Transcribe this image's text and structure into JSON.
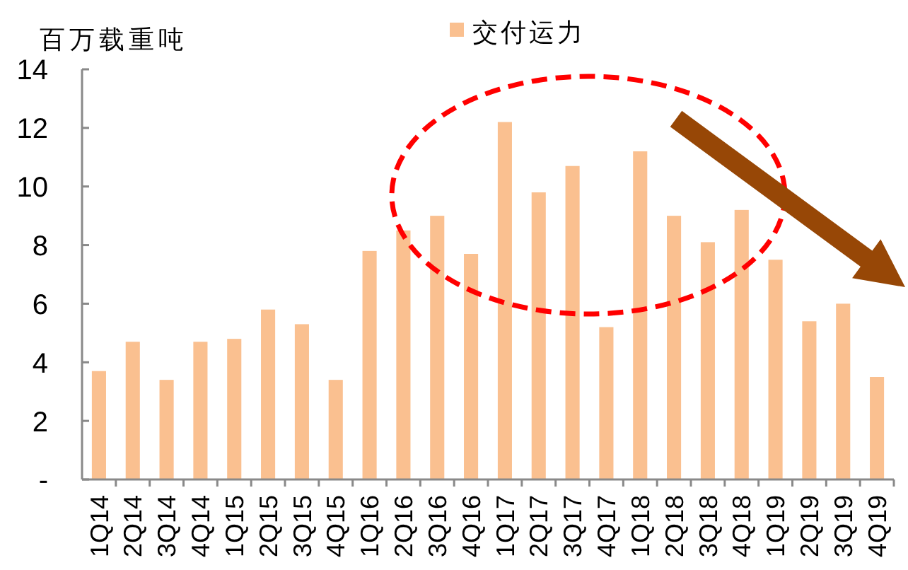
{
  "chart_data": {
    "type": "bar",
    "ylabel": "百万载重吨",
    "legend": "top",
    "categories": [
      "1Q14",
      "2Q14",
      "3Q14",
      "4Q14",
      "1Q15",
      "2Q15",
      "3Q15",
      "4Q15",
      "1Q16",
      "2Q16",
      "3Q16",
      "4Q16",
      "1Q17",
      "2Q17",
      "3Q17",
      "4Q17",
      "1Q18",
      "2Q18",
      "3Q18",
      "4Q18",
      "1Q19",
      "2Q19",
      "3Q19",
      "4Q19"
    ],
    "series": [
      {
        "name": "交付运力",
        "color": "#fac090",
        "values": [
          3.7,
          4.7,
          3.4,
          4.7,
          4.8,
          5.8,
          5.3,
          3.4,
          7.8,
          8.5,
          9.0,
          7.7,
          12.2,
          9.8,
          10.7,
          5.2,
          11.2,
          9.0,
          8.1,
          9.2,
          7.5,
          5.4,
          6.0,
          3.5
        ]
      }
    ],
    "ylim": [
      0,
      14
    ],
    "yticks": [
      {
        "value": 0,
        "label": "-"
      },
      2,
      4,
      6,
      8,
      10,
      12,
      14
    ]
  }
}
